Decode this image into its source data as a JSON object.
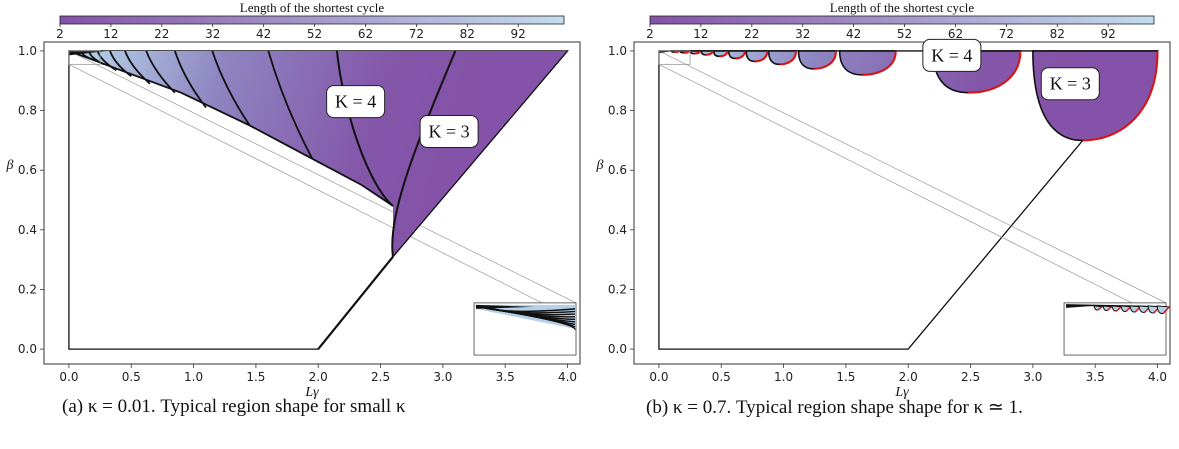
{
  "chart_data": [
    {
      "type": "heatmap",
      "panel": "a",
      "caption": "(a) κ = 0.01. Typical region shape for small κ",
      "colorbar": {
        "label": "Length of the shortest cycle",
        "ticks": [
          "2",
          "12",
          "22",
          "32",
          "42",
          "52",
          "62",
          "72",
          "82",
          "92"
        ],
        "range": [
          2,
          101
        ],
        "colors": [
          "#8452a8",
          "#c4dcee"
        ]
      },
      "xlabel": "Lγ",
      "ylabel": "β",
      "xlim": [
        -0.2,
        4.1
      ],
      "ylim": [
        -0.05,
        1.03
      ],
      "xticks": [
        "0.0",
        "0.5",
        "1.0",
        "1.5",
        "2.0",
        "2.5",
        "3.0",
        "3.5",
        "4.0"
      ],
      "yticks": [
        "0.0",
        "0.2",
        "0.4",
        "0.6",
        "0.8",
        "1.0"
      ],
      "annotations": [
        "K = 4",
        "K = 3"
      ],
      "region_outline": [
        [
          0,
          0
        ],
        [
          2.0,
          0
        ],
        [
          2.6,
          0.31
        ],
        [
          4.0,
          1.0
        ],
        [
          0,
          1.0
        ]
      ],
      "colored_region": [
        [
          0,
          1.0
        ],
        [
          4.0,
          1.0
        ],
        [
          2.6,
          0.31
        ],
        [
          2.6,
          0.48
        ],
        [
          1.9,
          0.65
        ],
        [
          0,
          1.0
        ]
      ],
      "color_samples": [
        [
          0.1,
          1.0,
          95
        ],
        [
          0.9,
          0.95,
          50
        ],
        [
          2.0,
          0.8,
          12
        ],
        [
          3.5,
          0.95,
          3
        ]
      ],
      "inset": true
    },
    {
      "type": "heatmap",
      "panel": "b",
      "caption": "(b) κ = 0.7. Typical region shape shape for κ ≃ 1.",
      "colorbar": {
        "label": "Length of the shortest cycle",
        "ticks": [
          "2",
          "12",
          "22",
          "32",
          "42",
          "52",
          "62",
          "72",
          "82",
          "92"
        ],
        "range": [
          2,
          101
        ],
        "colors": [
          "#8452a8",
          "#c4dcee"
        ]
      },
      "xlabel": "Lγ",
      "ylabel": "β",
      "xlim": [
        -0.2,
        4.1
      ],
      "ylim": [
        -0.05,
        1.03
      ],
      "xticks": [
        "0.0",
        "0.5",
        "1.0",
        "1.5",
        "2.0",
        "2.5",
        "3.0",
        "3.5",
        "4.0"
      ],
      "yticks": [
        "0.0",
        "0.2",
        "0.4",
        "0.6",
        "0.8",
        "1.0"
      ],
      "annotations": [
        "K = 4",
        "K = 3"
      ],
      "region_outline": [
        [
          0,
          0
        ],
        [
          2.0,
          0
        ],
        [
          4.0,
          1.0
        ],
        [
          0,
          1.0
        ]
      ],
      "lobes": [
        {
          "x1": 3.0,
          "x2": 4.0,
          "ymin": 0.7,
          "K": "3"
        },
        {
          "x1": 2.2,
          "x2": 2.9,
          "ymin": 0.86,
          "K": "4"
        },
        {
          "x1": 1.45,
          "x2": 1.9,
          "ymin": 0.92
        },
        {
          "x1": 1.12,
          "x2": 1.42,
          "ymin": 0.94
        },
        {
          "x1": 0.88,
          "x2": 1.1,
          "ymin": 0.955
        },
        {
          "x1": 0.7,
          "x2": 0.87,
          "ymin": 0.965
        },
        {
          "x1": 0.56,
          "x2": 0.69,
          "ymin": 0.975
        },
        {
          "x1": 0.44,
          "x2": 0.55,
          "ymin": 0.982
        },
        {
          "x1": 0.34,
          "x2": 0.43,
          "ymin": 0.987
        },
        {
          "x1": 0.25,
          "x2": 0.33,
          "ymin": 0.991
        },
        {
          "x1": 0.17,
          "x2": 0.24,
          "ymin": 0.994
        },
        {
          "x1": 0.1,
          "x2": 0.16,
          "ymin": 0.996
        }
      ],
      "inset": true
    }
  ]
}
